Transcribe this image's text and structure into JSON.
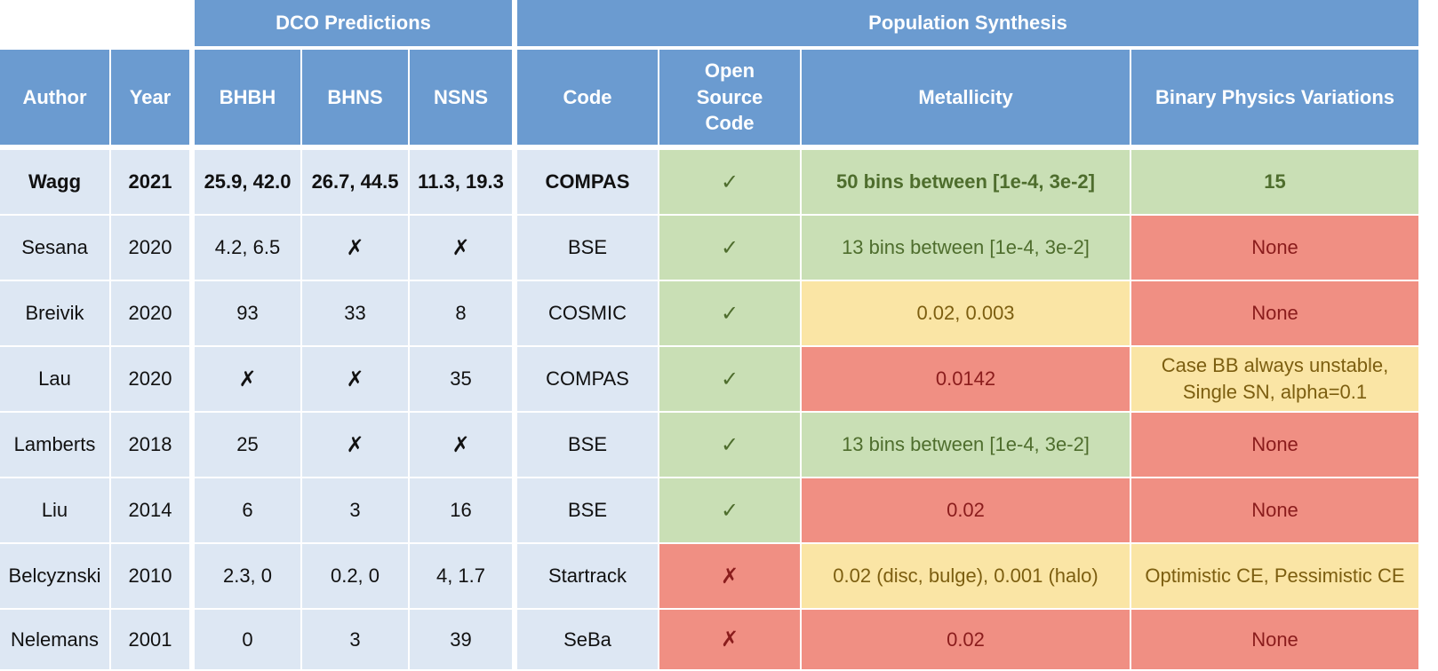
{
  "colors": {
    "header_blue": "#6b9bd0",
    "row_light_blue": "#dde7f3",
    "good_green": "#c9dfb5",
    "bad_red": "#f08f83",
    "mid_yellow": "#fae5a5"
  },
  "groups": {
    "dco": "DCO Predictions",
    "pop": "Population Synthesis"
  },
  "headers": {
    "author": "Author",
    "year": "Year",
    "bhbh": "BHBH",
    "bhns": "BHNS",
    "nsns": "NSNS",
    "code": "Code",
    "open_source": "Open Source Code",
    "metallicity": "Metallicity",
    "binary_physics": "Binary Physics Variations"
  },
  "rows": [
    {
      "author": "Wagg",
      "year": "2021",
      "bhbh": "25.9, 42.0",
      "bhns": "26.7, 44.5",
      "nsns": "11.3, 19.3",
      "code": "COMPAS",
      "open_source": "✓",
      "metallicity": "50 bins between [1e-4, 3e-2]",
      "binary_physics": "15"
    },
    {
      "author": "Sesana",
      "year": "2020",
      "bhbh": "4.2, 6.5",
      "bhns": "✗",
      "nsns": "✗",
      "code": "BSE",
      "open_source": "✓",
      "metallicity": "13 bins between [1e-4, 3e-2]",
      "binary_physics": "None"
    },
    {
      "author": "Breivik",
      "year": "2020",
      "bhbh": "93",
      "bhns": "33",
      "nsns": "8",
      "code": "COSMIC",
      "open_source": "✓",
      "metallicity": "0.02, 0.003",
      "binary_physics": "None"
    },
    {
      "author": "Lau",
      "year": "2020",
      "bhbh": "✗",
      "bhns": "✗",
      "nsns": "35",
      "code": "COMPAS",
      "open_source": "✓",
      "metallicity": "0.0142",
      "binary_physics": "Case BB always unstable, Single SN, alpha=0.1"
    },
    {
      "author": "Lamberts",
      "year": "2018",
      "bhbh": "25",
      "bhns": "✗",
      "nsns": "✗",
      "code": "BSE",
      "open_source": "✓",
      "metallicity": "13 bins between [1e-4, 3e-2]",
      "binary_physics": "None"
    },
    {
      "author": "Liu",
      "year": "2014",
      "bhbh": "6",
      "bhns": "3",
      "nsns": "16",
      "code": "BSE",
      "open_source": "✓",
      "metallicity": "0.02",
      "binary_physics": "None"
    },
    {
      "author": "Belcyznski",
      "year": "2010",
      "bhbh": "2.3, 0",
      "bhns": "0.2, 0",
      "nsns": "4, 1.7",
      "code": "Startrack",
      "open_source": "✗",
      "metallicity": "0.02 (disc, bulge), 0.001 (halo)",
      "binary_physics": "Optimistic CE, Pessimistic CE"
    },
    {
      "author": "Nelemans",
      "year": "2001",
      "bhbh": "0",
      "bhns": "3",
      "nsns": "39",
      "code": "SeBa",
      "open_source": "✗",
      "metallicity": "0.02",
      "binary_physics": "None"
    }
  ]
}
